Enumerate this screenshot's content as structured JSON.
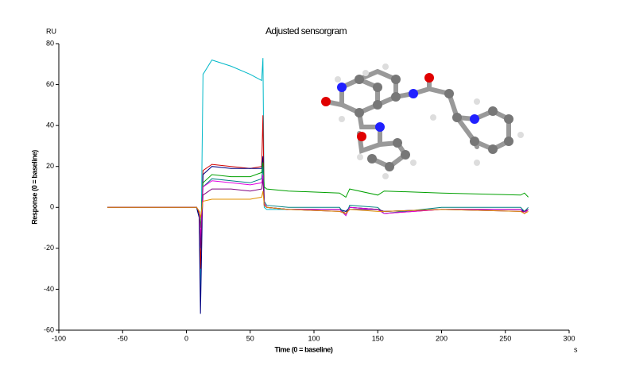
{
  "chart_data": {
    "type": "line",
    "title": "Adjusted sensorgram",
    "x_label": "Time (0 = baseline)",
    "y_label": "Response (0 = baseline)",
    "y_unit": "RU",
    "x_unit": "s",
    "xlim": [
      -100,
      300
    ],
    "xticks": [
      -100,
      -50,
      0,
      50,
      100,
      150,
      200,
      250,
      300
    ],
    "ylim": [
      -60,
      80
    ],
    "yticks": [
      -60,
      -40,
      -20,
      0,
      20,
      40,
      60,
      80
    ],
    "x": [
      -62,
      -40,
      -20,
      0,
      8,
      10,
      11,
      13,
      20,
      35,
      50,
      59,
      60,
      61,
      63,
      80,
      120,
      125,
      128,
      150,
      155,
      200,
      262,
      265,
      268
    ],
    "series": [
      {
        "color": "#00b8c8",
        "values": [
          0,
          0,
          0,
          0,
          0,
          -5,
          -40,
          65,
          72,
          69,
          65,
          62,
          73,
          0,
          -1,
          -1,
          -1,
          -2,
          -1,
          -1,
          -2,
          -1,
          -1,
          -2,
          -1
        ]
      },
      {
        "color": "#d00000",
        "values": [
          0,
          0,
          0,
          0,
          0,
          -3,
          -30,
          18,
          21,
          20,
          19,
          20,
          45,
          2,
          0,
          -1,
          -1,
          -3,
          0,
          -1,
          -3,
          -1,
          -1,
          -3,
          -1
        ]
      },
      {
        "color": "#000080",
        "values": [
          0,
          0,
          0,
          0,
          0,
          -5,
          -52,
          16,
          20,
          19,
          19,
          19,
          25,
          1,
          0,
          -1,
          -1,
          -2,
          0,
          -1,
          -2,
          -1,
          -1,
          -2,
          -1
        ]
      },
      {
        "color": "#00a000",
        "values": [
          0,
          0,
          0,
          0,
          0,
          -2,
          -10,
          12,
          16,
          15,
          15,
          17,
          22,
          10,
          9,
          8,
          7,
          5,
          9,
          6,
          8,
          7,
          6,
          7,
          5
        ]
      },
      {
        "color": "#008080",
        "values": [
          0,
          0,
          0,
          0,
          0,
          -2,
          -20,
          10,
          14,
          13,
          12,
          14,
          20,
          3,
          1,
          0,
          0,
          -4,
          1,
          0,
          -3,
          0,
          0,
          -2,
          0
        ]
      },
      {
        "color": "#e000e0",
        "values": [
          0,
          0,
          0,
          0,
          0,
          -2,
          -15,
          10,
          13,
          12,
          11,
          12,
          16,
          2,
          0,
          -1,
          -1,
          -4,
          0,
          -1,
          -3,
          -1,
          -1,
          -3,
          -1
        ]
      },
      {
        "color": "#800080",
        "values": [
          0,
          0,
          0,
          0,
          0,
          -2,
          -20,
          6,
          9,
          9,
          8,
          9,
          14,
          1,
          0,
          -1,
          -2,
          -3,
          -1,
          -1,
          -2,
          -1,
          -2,
          -2,
          -1
        ]
      },
      {
        "color": "#e09000",
        "values": [
          0,
          0,
          0,
          0,
          0,
          -2,
          -5,
          3,
          4,
          4,
          4,
          5,
          8,
          1,
          0,
          -1,
          -2,
          -3,
          -1,
          -2,
          -2,
          -1,
          -2,
          -3,
          -2
        ]
      }
    ]
  }
}
